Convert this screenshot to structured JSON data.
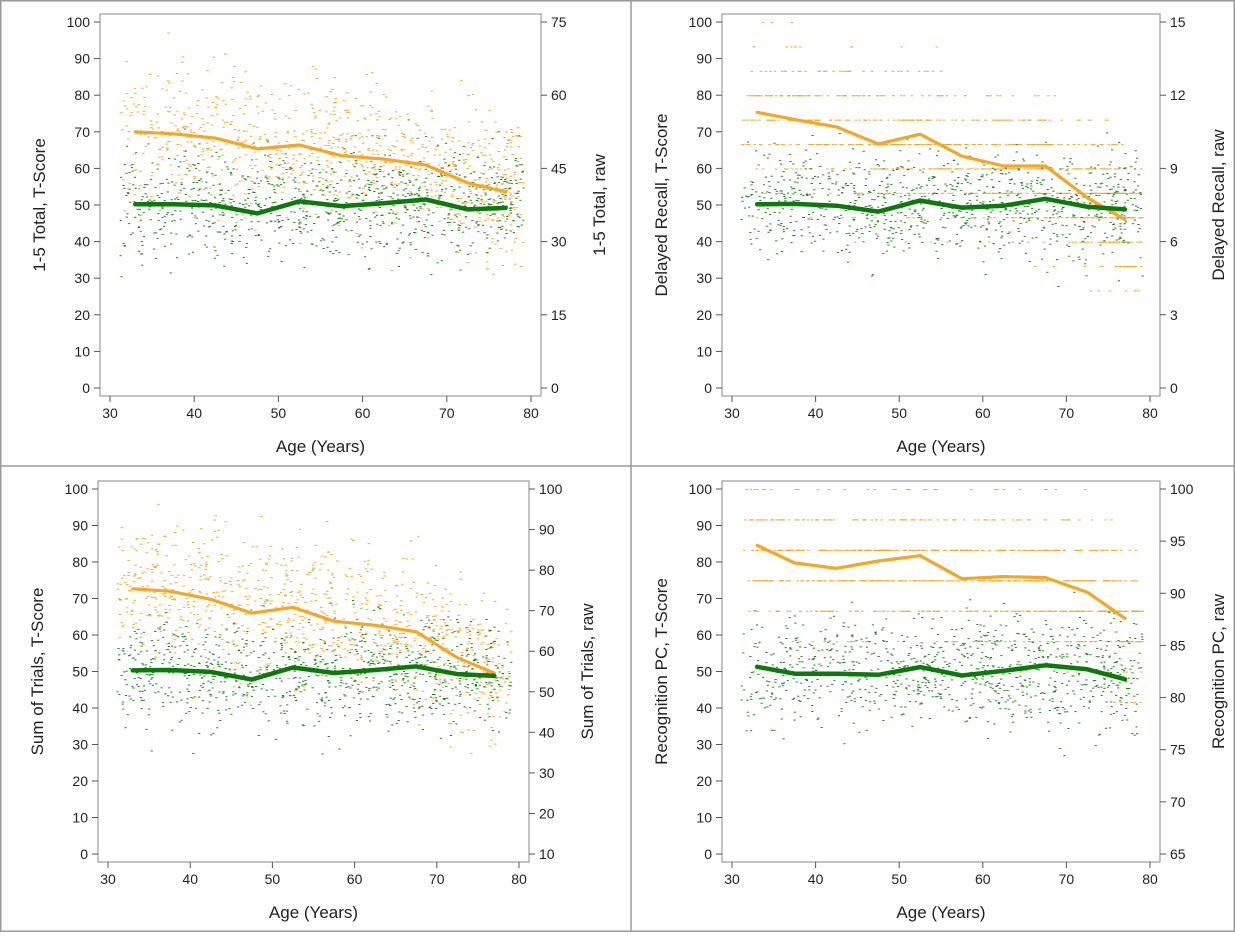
{
  "colors": {
    "raw": "#f5a623",
    "tscore": "#0a7a0a",
    "axis": "#555555",
    "border": "#888888"
  },
  "chart_data": [
    {
      "type": "scatter",
      "title": "",
      "xlabel": "Age (Years)",
      "ylabel": "1-5 Total, T-Score",
      "ylabel_right": "1-5 Total, raw",
      "xlim": [
        30,
        80
      ],
      "xticks": [
        30,
        40,
        50,
        60,
        70,
        80
      ],
      "ylim": [
        0,
        100
      ],
      "yticks": [
        0,
        10,
        20,
        30,
        40,
        50,
        60,
        70,
        80,
        90,
        100
      ],
      "ylim_right": [
        0,
        75
      ],
      "yticks_right": [
        0,
        15,
        30,
        45,
        60,
        75
      ],
      "scatter_x_range": [
        31,
        79
      ],
      "series": [
        {
          "axis": "right",
          "color_key": "raw",
          "x": [
            33,
            37.5,
            42.5,
            47.5,
            52.5,
            57.5,
            62.5,
            67.5,
            72.5,
            77
          ],
          "y": [
            52.5,
            52.1,
            51.2,
            49,
            49.8,
            47.6,
            46.9,
            45.7,
            42,
            40.2
          ]
        },
        {
          "axis": "left",
          "color_key": "tscore",
          "x": [
            33,
            37.5,
            42.5,
            47.5,
            52.5,
            57.5,
            62.5,
            67.5,
            72.5,
            77
          ],
          "y": [
            50.2,
            50.2,
            49.9,
            47.7,
            51,
            49.7,
            50.5,
            51.5,
            48.8,
            49.2
          ]
        }
      ]
    },
    {
      "type": "scatter",
      "title": "",
      "xlabel": "Age (Years)",
      "ylabel": "Delayed Recall, T-Score",
      "ylabel_right": "Delayed Recall, raw",
      "xlim": [
        30,
        80
      ],
      "xticks": [
        30,
        40,
        50,
        60,
        70,
        80
      ],
      "ylim": [
        0,
        100
      ],
      "yticks": [
        0,
        10,
        20,
        30,
        40,
        50,
        60,
        70,
        80,
        90,
        100
      ],
      "ylim_right": [
        0,
        15
      ],
      "yticks_right": [
        0,
        3,
        6,
        9,
        12,
        15
      ],
      "scatter_x_range": [
        31,
        79
      ],
      "series": [
        {
          "axis": "right",
          "color_key": "raw",
          "x": [
            33,
            37.5,
            42.5,
            47.5,
            52.5,
            57.5,
            62.5,
            67.5,
            72.5,
            77
          ],
          "y": [
            11.3,
            11,
            10.7,
            10,
            10.4,
            9.5,
            9.1,
            9.1,
            7.8,
            6.9
          ]
        },
        {
          "axis": "left",
          "color_key": "tscore",
          "x": [
            33,
            37.5,
            42.5,
            47.5,
            52.5,
            57.5,
            62.5,
            67.5,
            72.5,
            77
          ],
          "y": [
            50.2,
            50.3,
            49.8,
            48.2,
            51.2,
            49.3,
            49.8,
            51.7,
            49.5,
            48.8
          ]
        }
      ]
    },
    {
      "type": "scatter",
      "title": "",
      "xlabel": "Age (Years)",
      "ylabel": "Sum of Trials, T-Score",
      "ylabel_right": "Sum of Trials, raw",
      "xlim": [
        30,
        80
      ],
      "xticks": [
        30,
        40,
        50,
        60,
        70,
        80
      ],
      "ylim": [
        0,
        100
      ],
      "yticks": [
        0,
        10,
        20,
        30,
        40,
        50,
        60,
        70,
        80,
        90,
        100
      ],
      "ylim_right": [
        10,
        100
      ],
      "yticks_right": [
        10,
        20,
        30,
        40,
        50,
        60,
        70,
        80,
        90,
        100
      ],
      "scatter_x_range": [
        31,
        79
      ],
      "series": [
        {
          "axis": "right",
          "color_key": "raw",
          "x": [
            33,
            37.5,
            42.5,
            47.5,
            52.5,
            57.5,
            62.5,
            67.5,
            72.5,
            77
          ],
          "y": [
            75.4,
            74.8,
            72.8,
            69.4,
            70.8,
            67.4,
            66.4,
            64.8,
            58.4,
            54.6
          ]
        },
        {
          "axis": "left",
          "color_key": "tscore",
          "x": [
            33,
            37.5,
            42.5,
            47.5,
            52.5,
            57.5,
            62.5,
            67.5,
            72.5,
            77
          ],
          "y": [
            50.3,
            50.4,
            49.9,
            47.8,
            51.1,
            49.6,
            50.4,
            51.4,
            49.3,
            48.8
          ]
        }
      ]
    },
    {
      "type": "scatter",
      "title": "",
      "xlabel": "Age (Years)",
      "ylabel": "Recognition PC, T-Score",
      "ylabel_right": "Recognition PC, raw",
      "xlim": [
        30,
        80
      ],
      "xticks": [
        30,
        40,
        50,
        60,
        70,
        80
      ],
      "ylim": [
        0,
        100
      ],
      "yticks": [
        0,
        10,
        20,
        30,
        40,
        50,
        60,
        70,
        80,
        90,
        100
      ],
      "ylim_right": [
        65,
        100
      ],
      "yticks_right": [
        65,
        70,
        75,
        80,
        85,
        90,
        95,
        100
      ],
      "scatter_x_range": [
        31,
        79
      ],
      "series": [
        {
          "axis": "right",
          "color_key": "raw",
          "x": [
            33,
            37.5,
            42.5,
            47.5,
            52.5,
            57.5,
            62.5,
            67.5,
            72.5,
            77
          ],
          "y": [
            94.6,
            92.9,
            92.4,
            93.1,
            93.6,
            91.4,
            91.6,
            91.5,
            90.1,
            87.6
          ]
        },
        {
          "axis": "left",
          "color_key": "tscore",
          "x": [
            33,
            37.5,
            42.5,
            47.5,
            52.5,
            57.5,
            62.5,
            67.5,
            72.5,
            77
          ],
          "y": [
            51.3,
            49.4,
            49.4,
            49.1,
            51.2,
            48.9,
            50.2,
            51.7,
            50.6,
            47.9
          ]
        }
      ]
    }
  ]
}
